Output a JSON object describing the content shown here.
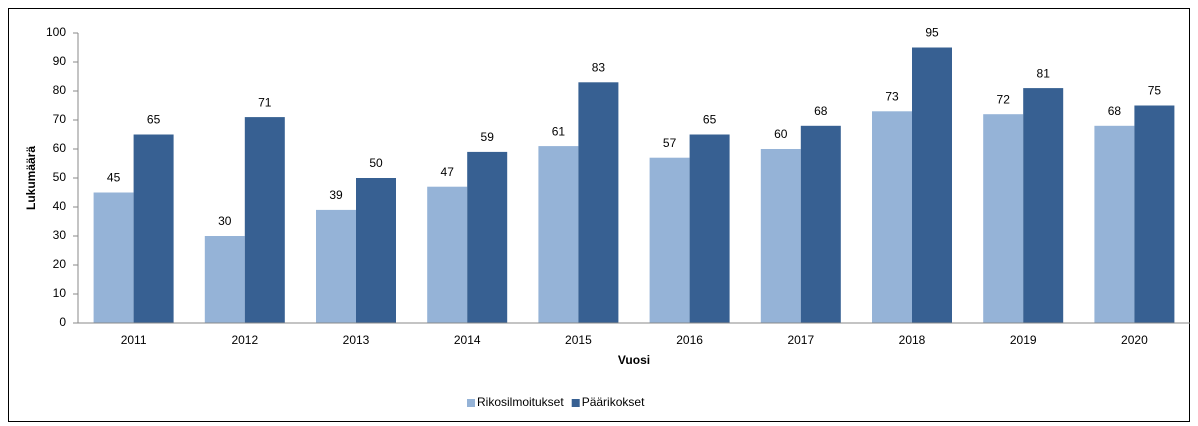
{
  "chart_data": {
    "type": "bar",
    "categories": [
      "2011",
      "2012",
      "2013",
      "2014",
      "2015",
      "2016",
      "2017",
      "2018",
      "2019",
      "2020"
    ],
    "series": [
      {
        "name": "Rikosilmoitukset",
        "color": "#95b3d7",
        "values": [
          45,
          30,
          39,
          47,
          61,
          57,
          60,
          73,
          72,
          68
        ]
      },
      {
        "name": "Päärikokset",
        "color": "#376092",
        "values": [
          65,
          71,
          50,
          59,
          83,
          65,
          68,
          95,
          81,
          75
        ]
      }
    ],
    "x_label": "Vuosi",
    "y_label": "Lukumäärä",
    "ylim": [
      0,
      100
    ],
    "yticks": [
      0,
      10,
      20,
      30,
      40,
      50,
      60,
      70,
      80,
      90,
      100
    ],
    "grid": false,
    "legend": "bottom"
  }
}
